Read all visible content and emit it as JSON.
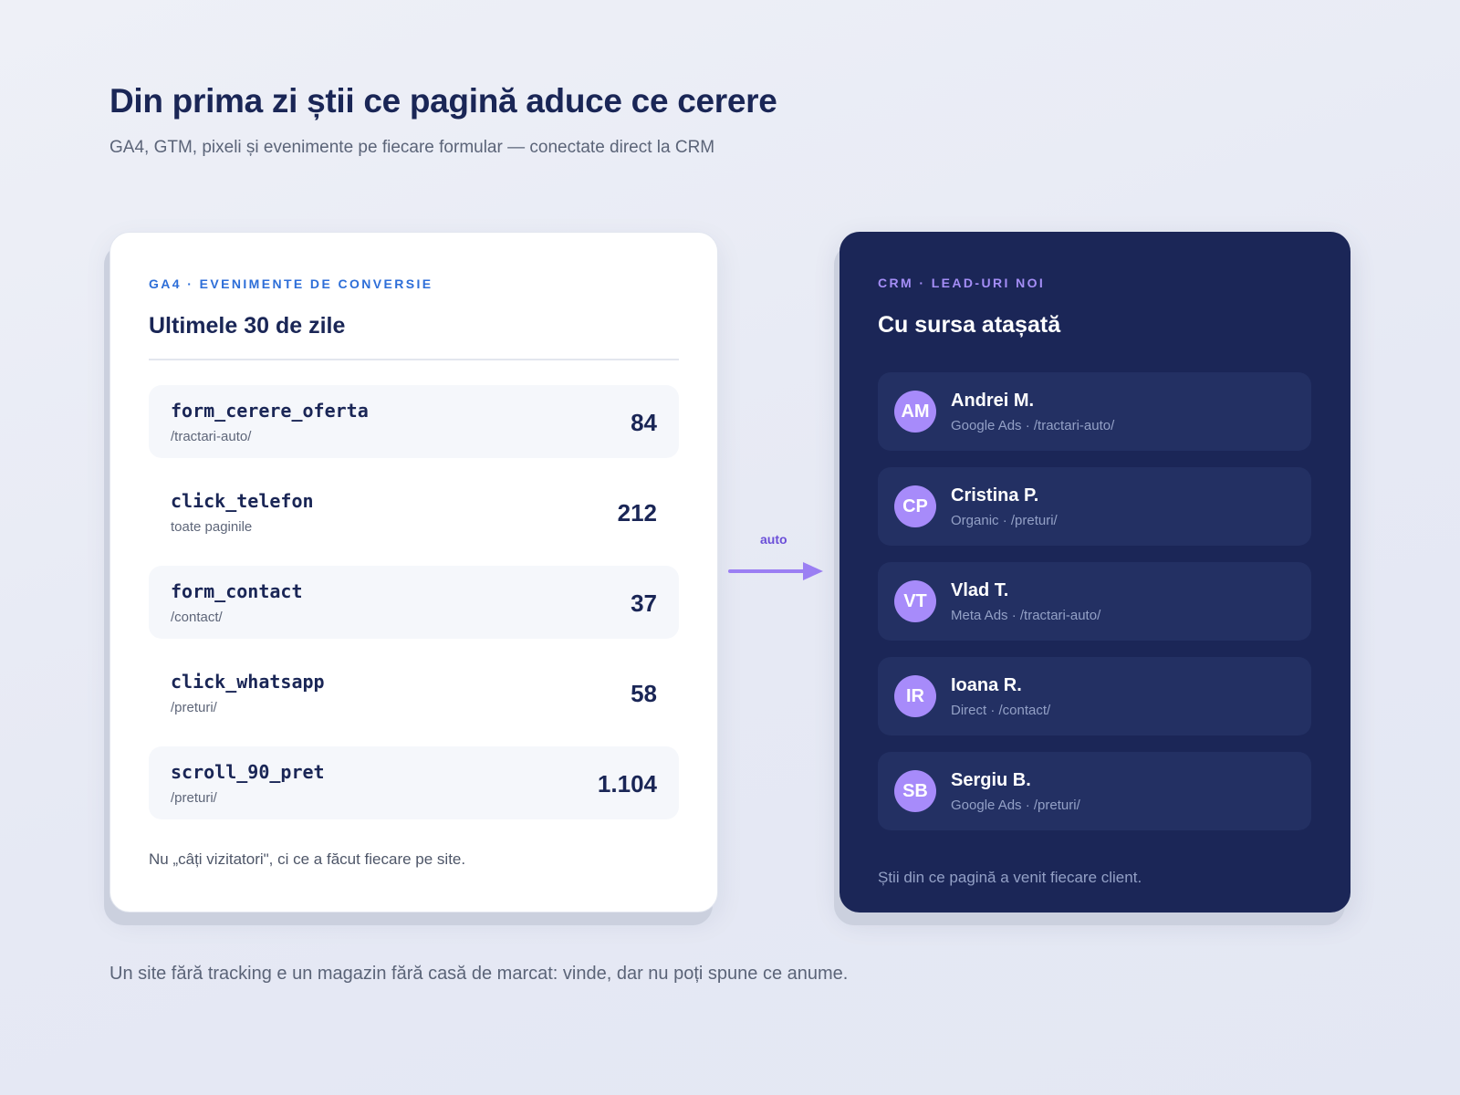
{
  "header": {
    "title": "Din prima zi știi ce pagină aduce ce cerere",
    "subtitle": "GA4, GTM, pixeli și evenimente pe fiecare formular — conectate direct la CRM"
  },
  "ga4_card": {
    "eyebrow": "GA4 · EVENIMENTE DE CONVERSIE",
    "heading": "Ultimele 30 de zile",
    "events": [
      {
        "name": "form_cerere_oferta",
        "page": "/tractari-auto/",
        "count": "84"
      },
      {
        "name": "click_telefon",
        "page": "toate paginile",
        "count": "212"
      },
      {
        "name": "form_contact",
        "page": "/contact/",
        "count": "37"
      },
      {
        "name": "click_whatsapp",
        "page": "/preturi/",
        "count": "58"
      },
      {
        "name": "scroll_90_pret",
        "page": "/preturi/",
        "count": "1.104"
      }
    ],
    "footnote": "Nu „câți vizitatori\", ci ce a făcut fiecare pe site."
  },
  "connector": {
    "label": "auto",
    "icon": "arrow-right-icon"
  },
  "crm_card": {
    "eyebrow": "CRM · LEAD-URI NOI",
    "heading": "Cu sursa atașată",
    "leads": [
      {
        "initials": "AM",
        "name": "Andrei M.",
        "source": "Google Ads · /tractari-auto/"
      },
      {
        "initials": "CP",
        "name": "Cristina P.",
        "source": "Organic · /preturi/"
      },
      {
        "initials": "VT",
        "name": "Vlad T.",
        "source": "Meta Ads · /tractari-auto/"
      },
      {
        "initials": "IR",
        "name": "Ioana R.",
        "source": "Direct · /contact/"
      },
      {
        "initials": "SB",
        "name": "Sergiu B.",
        "source": "Google Ads · /preturi/"
      }
    ],
    "footnote": "Știi din ce pagină a venit fiecare client."
  },
  "footer": {
    "note": "Un site fără tracking e un magazin fără casă de marcat: vinde, dar nu poți spune ce anume."
  },
  "colors": {
    "ga4_accent": "#2d6ed8",
    "crm_accent": "#a58ef7",
    "crm_background": "#1b2657",
    "avatar": "#a78bfa",
    "arrow": "#9b7ff3"
  }
}
